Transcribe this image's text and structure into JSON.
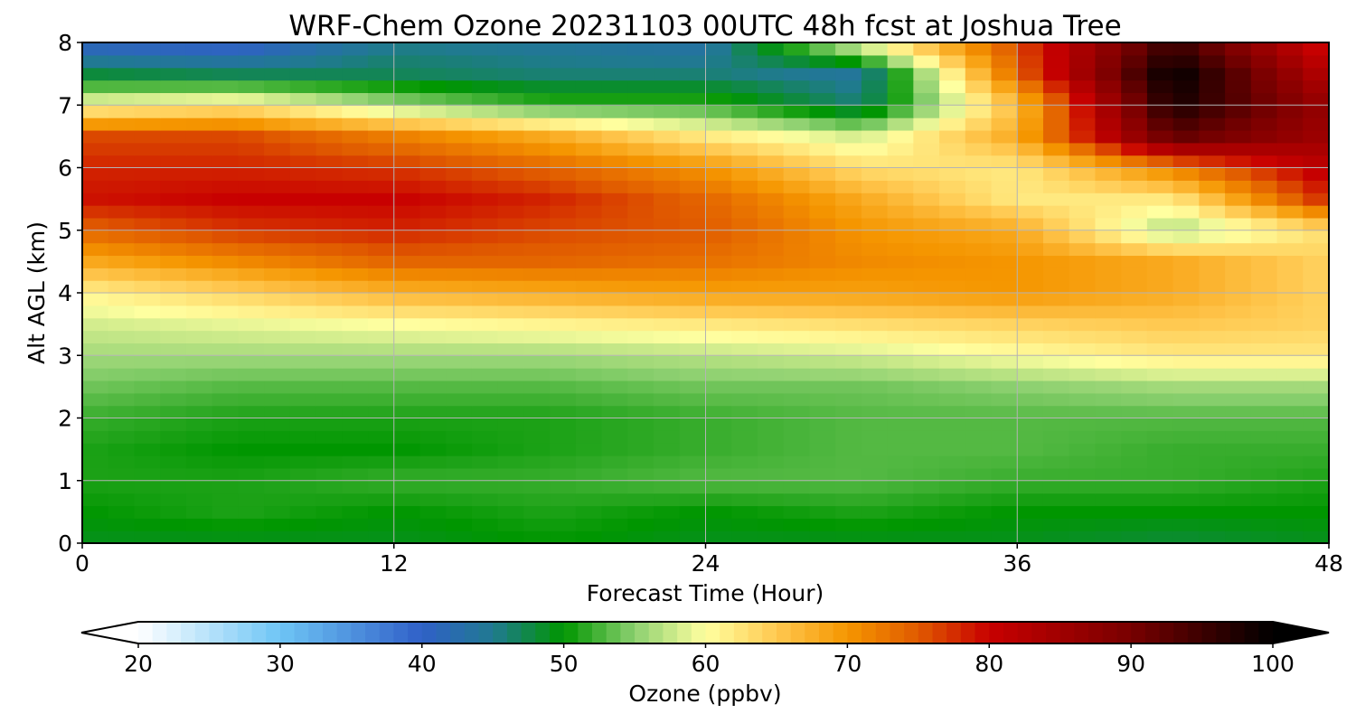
{
  "chart_data": {
    "type": "heatmap",
    "title": "WRF-Chem Ozone  20231103 00UTC 48h fcst at Joshua Tree",
    "xlabel": "Forecast Time (Hour)",
    "ylabel": "Alt AGL (km)",
    "xlim": [
      0,
      48
    ],
    "ylim": [
      0,
      8
    ],
    "x_ticks": [
      "0",
      "12",
      "24",
      "36",
      "48"
    ],
    "y_ticks": [
      "0",
      "1",
      "2",
      "3",
      "4",
      "5",
      "6",
      "7",
      "8"
    ],
    "grid": true,
    "x": [
      0,
      6,
      12,
      18,
      24,
      30,
      36,
      42,
      48
    ],
    "y": [
      0,
      0.5,
      1,
      1.5,
      2,
      2.5,
      3,
      3.5,
      4,
      4.5,
      5,
      5.5,
      6,
      6.5,
      7,
      7.5,
      8
    ],
    "z": [
      [
        49,
        49,
        49,
        50,
        49,
        49,
        49,
        48,
        49
      ],
      [
        50,
        51,
        50,
        51,
        50,
        51,
        50,
        50,
        50
      ],
      [
        51,
        51,
        52,
        52,
        53,
        53,
        52,
        52,
        51
      ],
      [
        51,
        50,
        50,
        51,
        52,
        53,
        53,
        52,
        52
      ],
      [
        52,
        51,
        51,
        51,
        52,
        53,
        53,
        53,
        53
      ],
      [
        54,
        53,
        53,
        53,
        54,
        54,
        55,
        56,
        56
      ],
      [
        56,
        56,
        56,
        56,
        57,
        58,
        60,
        62,
        62
      ],
      [
        58,
        59,
        60,
        61,
        62,
        63,
        64,
        65,
        64
      ],
      [
        61,
        64,
        67,
        68,
        69,
        69,
        70,
        68,
        64
      ],
      [
        68,
        71,
        74,
        74,
        73,
        71,
        70,
        68,
        64
      ],
      [
        74,
        77,
        78,
        76,
        75,
        70,
        68,
        56,
        63
      ],
      [
        79,
        80,
        80,
        78,
        74,
        68,
        62,
        62,
        78
      ],
      [
        78,
        78,
        77,
        74,
        70,
        63,
        62,
        72,
        82
      ],
      [
        76,
        76,
        72,
        68,
        62,
        58,
        68,
        92,
        85
      ],
      [
        60,
        62,
        56,
        52,
        52,
        46,
        66,
        98,
        86
      ],
      [
        48,
        47,
        47,
        46,
        46,
        44,
        74,
        100,
        82
      ],
      [
        40,
        39,
        45,
        44,
        43,
        60,
        76,
        95,
        78
      ]
    ],
    "colorbar": {
      "label": "Ozone  (ppbv)",
      "min": 20,
      "max": 100,
      "ticks": [
        "20",
        "30",
        "40",
        "50",
        "60",
        "70",
        "80",
        "90",
        "100"
      ],
      "extend": "both",
      "stops": [
        {
          "v": 20,
          "c": "#ffffff"
        },
        {
          "v": 30,
          "c": "#6ec5f5"
        },
        {
          "v": 40,
          "c": "#3060c8"
        },
        {
          "v": 45,
          "c": "#207a90"
        },
        {
          "v": 50,
          "c": "#009600"
        },
        {
          "v": 55,
          "c": "#8cd070"
        },
        {
          "v": 60,
          "c": "#ffffa0"
        },
        {
          "v": 65,
          "c": "#ffc850"
        },
        {
          "v": 70,
          "c": "#f59600"
        },
        {
          "v": 75,
          "c": "#e05a00"
        },
        {
          "v": 80,
          "c": "#c80000"
        },
        {
          "v": 90,
          "c": "#780000"
        },
        {
          "v": 100,
          "c": "#000000"
        }
      ]
    }
  }
}
